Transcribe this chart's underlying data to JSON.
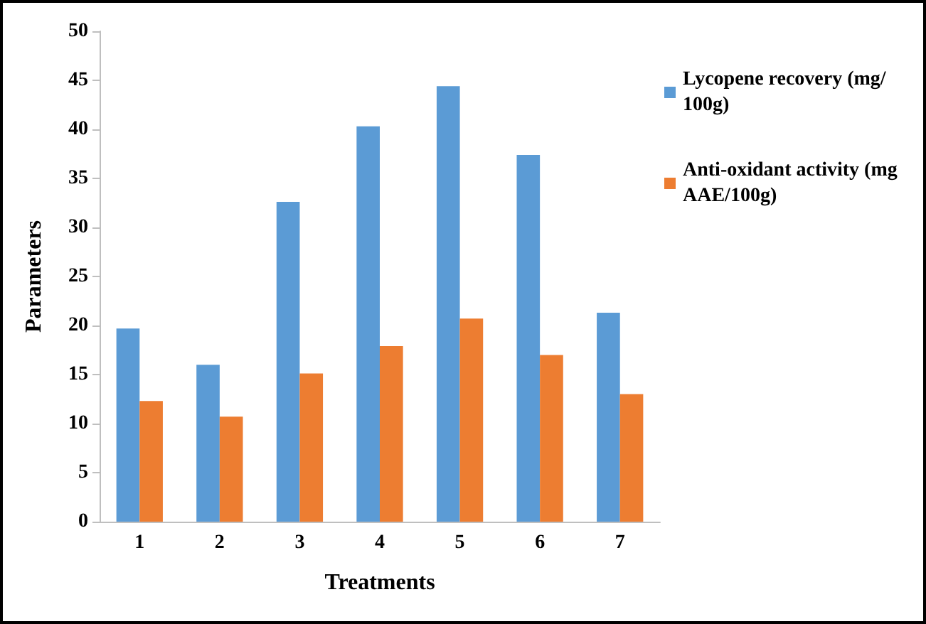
{
  "chart_data": {
    "type": "bar",
    "xlabel": "Treatments",
    "ylabel": "Parameters",
    "categories": [
      "1",
      "2",
      "3",
      "4",
      "5",
      "6",
      "7"
    ],
    "series": [
      {
        "name": "Lycopene recovery (mg/100g)",
        "color": "#5b9bd5",
        "values": [
          19.7,
          16.0,
          32.6,
          40.3,
          44.4,
          37.4,
          21.3
        ]
      },
      {
        "name": "Anti-oxidant activity (mg AAE/100g)",
        "color": "#ed7d31",
        "values": [
          12.3,
          10.7,
          15.1,
          17.9,
          20.7,
          17.0,
          13.0
        ]
      }
    ],
    "ylim": [
      0,
      50
    ],
    "yticks": [
      0,
      5,
      10,
      15,
      20,
      25,
      30,
      35,
      40,
      45,
      50
    ],
    "grid": false,
    "legend": "right"
  }
}
